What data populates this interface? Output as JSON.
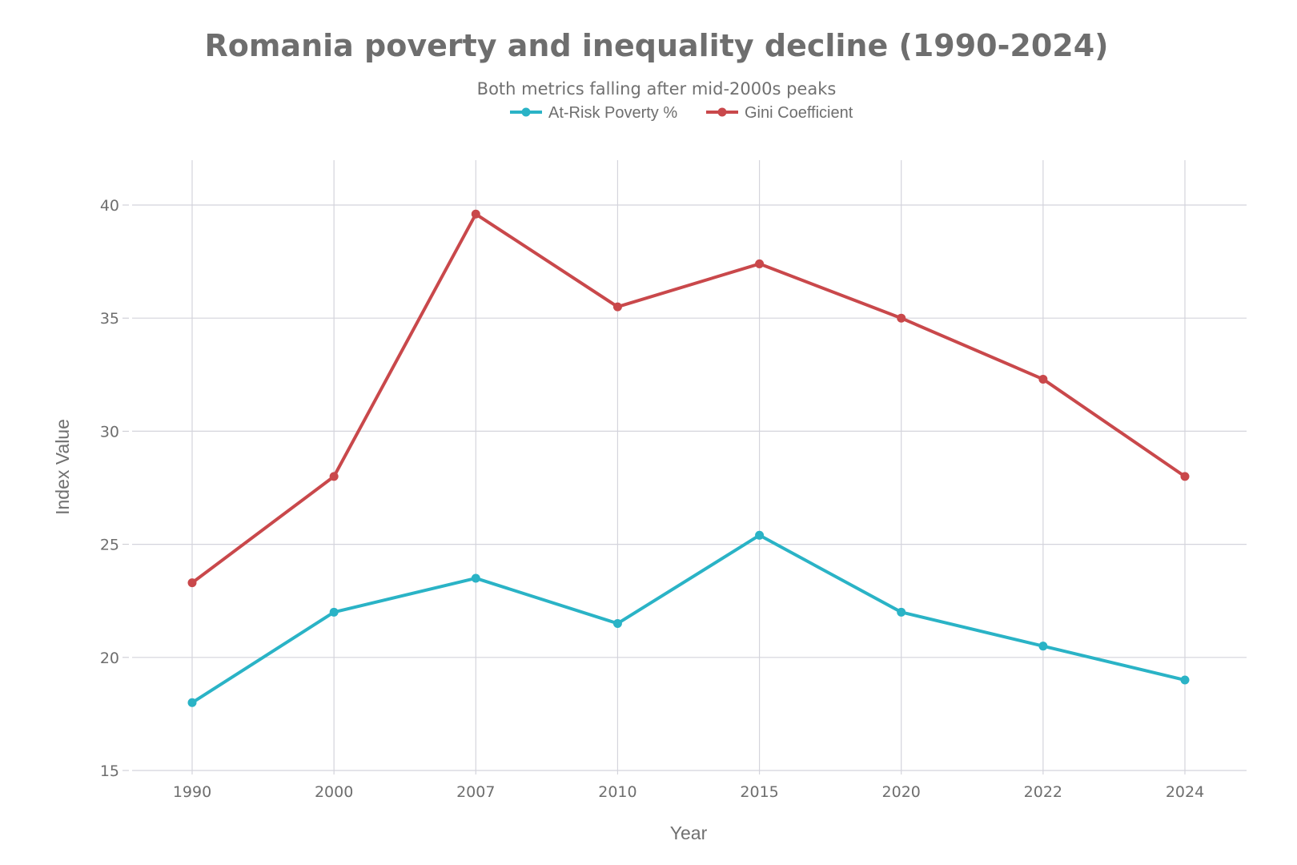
{
  "chart_data": {
    "type": "line",
    "title": "Romania poverty and inequality decline (1990-2024)",
    "subtitle": "Both metrics falling after mid-2000s peaks",
    "xlabel": "Year",
    "ylabel": "Index Value",
    "categories": [
      "1990",
      "2000",
      "2007",
      "2010",
      "2015",
      "2020",
      "2022",
      "2024"
    ],
    "yticks": [
      15,
      20,
      25,
      30,
      35,
      40
    ],
    "ylim": [
      15,
      42
    ],
    "grid": true,
    "legend_position": "top-center",
    "series": [
      {
        "name": "At-Risk Poverty %",
        "color": "#2ab3c6",
        "values": [
          18.0,
          22.0,
          23.5,
          21.5,
          25.4,
          22.0,
          20.5,
          19.0
        ]
      },
      {
        "name": "Gini Coefficient",
        "color": "#c9484b",
        "values": [
          23.3,
          28.0,
          39.6,
          35.5,
          37.4,
          35.0,
          32.3,
          28.0
        ]
      }
    ]
  }
}
